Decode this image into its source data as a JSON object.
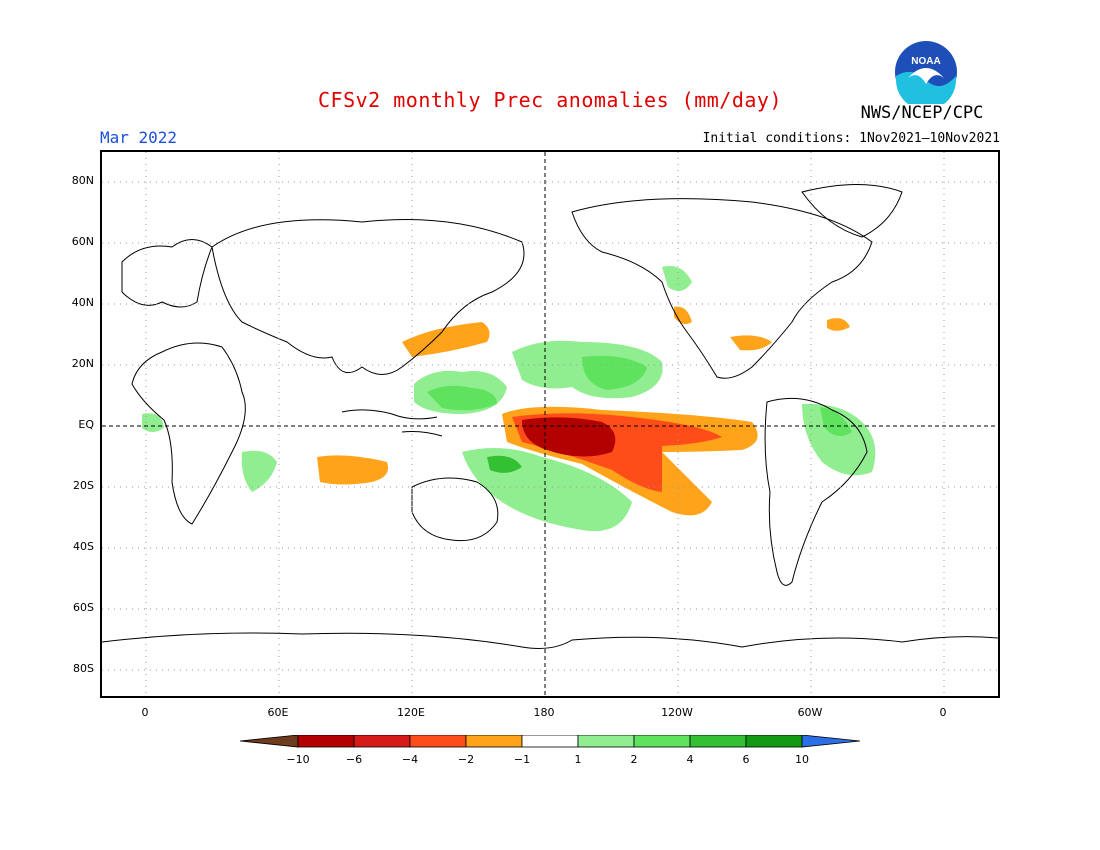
{
  "header": {
    "title": "CFSv2 monthly Prec anomalies (mm/day)",
    "month": "Mar 2022",
    "initial_conditions": "Initial conditions: 1Nov2021–10Nov2021",
    "organization": "NWS/NCEP/CPC",
    "logo_text": "NOAA"
  },
  "axes": {
    "lat_labels": [
      "80N",
      "60N",
      "40N",
      "20N",
      "EQ",
      "20S",
      "40S",
      "60S",
      "80S"
    ],
    "lon_labels": [
      "0",
      "60E",
      "120E",
      "180",
      "120W",
      "60W",
      "0"
    ]
  },
  "legend": {
    "labels": [
      "−10",
      "−6",
      "−4",
      "−2",
      "−1",
      "1",
      "2",
      "4",
      "6",
      "10"
    ],
    "colors": [
      "#6e3b1e",
      "#b30000",
      "#d61a1a",
      "#ff4d1a",
      "#ffa31a",
      "#ffffff",
      "#90ee90",
      "#5fe35f",
      "#33c033",
      "#139a13",
      "#2b6ee6"
    ]
  },
  "colors": {
    "title": "#e00000",
    "month": "#1e4fd8",
    "coast": "#000000",
    "grid": "#9a9a9a"
  }
}
